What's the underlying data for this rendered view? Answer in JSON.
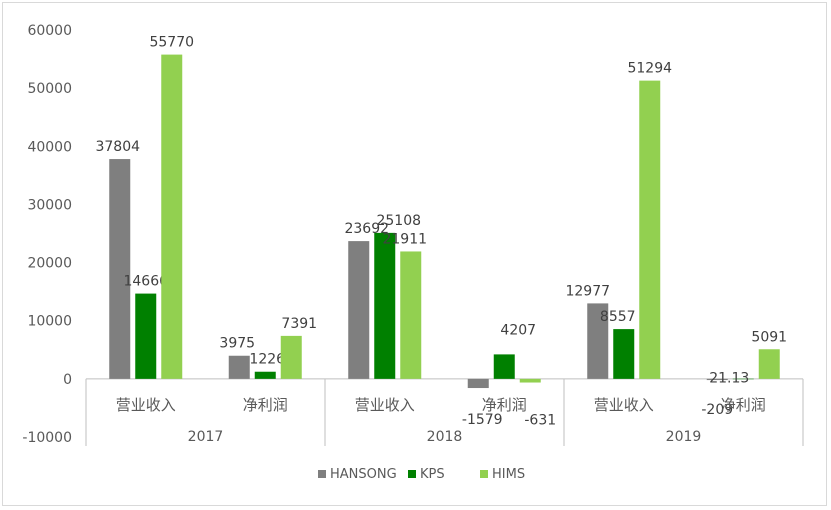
{
  "chart_data": {
    "type": "bar",
    "groups": [
      {
        "label": "2017",
        "categories": [
          "营业收入",
          "净利润"
        ]
      },
      {
        "label": "2018",
        "categories": [
          "营业收入",
          "净利润"
        ]
      },
      {
        "label": "2019",
        "categories": [
          "营业收入",
          "净利润"
        ]
      }
    ],
    "series": [
      {
        "name": "HANSONG",
        "color": "#7f7f7f",
        "values": [
          37804,
          3975,
          23692,
          -1579,
          12977,
          -209
        ],
        "labels": [
          "37804",
          "3975",
          "23692",
          "-1579",
          "12977",
          "-209"
        ]
      },
      {
        "name": "KPS",
        "color": "#008000",
        "values": [
          14666,
          1226,
          25108,
          4207,
          8557,
          21.13
        ],
        "labels": [
          "14666",
          "1226",
          "25108",
          "4207",
          "8557",
          "21.13"
        ]
      },
      {
        "name": "HIMS",
        "color": "#92d050",
        "values": [
          55770,
          7391,
          21911,
          -631,
          51294,
          5091
        ],
        "labels": [
          "55770",
          "7391",
          "21911",
          "-631",
          "51294",
          "5091"
        ]
      }
    ],
    "ylim": [
      -10000,
      60000
    ],
    "yticks": [
      -10000,
      0,
      10000,
      20000,
      30000,
      40000,
      50000,
      60000
    ],
    "legend_position": "bottom",
    "grid": false
  }
}
